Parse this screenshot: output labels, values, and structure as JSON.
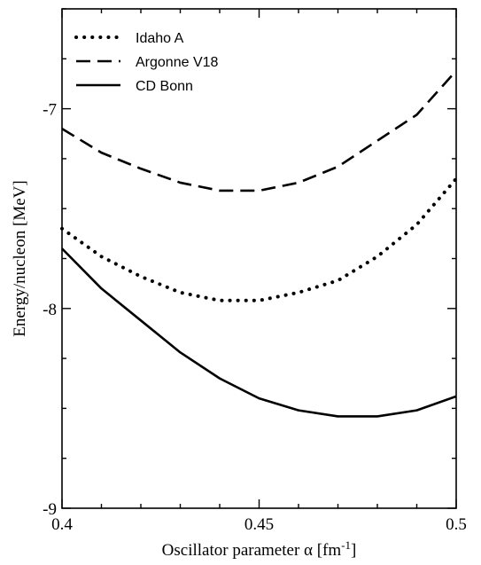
{
  "chart_data": {
    "type": "line",
    "xlabel": "Oscillator parameter α [fm⁻¹]",
    "xlabel_main": "Oscillator parameter α [fm",
    "xlabel_sup": "-1",
    "xlabel_close": "]",
    "ylabel": "Energy/nucleon [MeV]",
    "xlim": [
      0.4,
      0.5
    ],
    "ylim": [
      -9,
      -6.5
    ],
    "x_ticks": [
      {
        "value": 0.4,
        "label": "0.4"
      },
      {
        "value": 0.45,
        "label": "0.45"
      },
      {
        "value": 0.5,
        "label": "0.5"
      }
    ],
    "y_ticks": [
      {
        "value": -9,
        "label": "-9"
      },
      {
        "value": -8,
        "label": "-8"
      },
      {
        "value": -7,
        "label": "-7"
      }
    ],
    "legend_position": "top-left",
    "series": [
      {
        "name": "Idaho A",
        "style": "dotted",
        "x": [
          0.4,
          0.41,
          0.42,
          0.43,
          0.44,
          0.45,
          0.46,
          0.47,
          0.48,
          0.49,
          0.5
        ],
        "y": [
          -7.6,
          -7.74,
          -7.84,
          -7.92,
          -7.96,
          -7.96,
          -7.92,
          -7.86,
          -7.74,
          -7.58,
          -7.35
        ]
      },
      {
        "name": "Argonne V18",
        "style": "dashed",
        "x": [
          0.4,
          0.41,
          0.42,
          0.43,
          0.44,
          0.45,
          0.46,
          0.47,
          0.48,
          0.49,
          0.5
        ],
        "y": [
          -7.1,
          -7.22,
          -7.3,
          -7.37,
          -7.41,
          -7.41,
          -7.37,
          -7.29,
          -7.16,
          -7.03,
          -6.81
        ]
      },
      {
        "name": "CD Bonn",
        "style": "solid",
        "x": [
          0.4,
          0.41,
          0.42,
          0.43,
          0.44,
          0.45,
          0.46,
          0.47,
          0.48,
          0.49,
          0.5
        ],
        "y": [
          -7.7,
          -7.9,
          -8.06,
          -8.22,
          -8.35,
          -8.45,
          -8.51,
          -8.54,
          -8.54,
          -8.51,
          -8.44
        ]
      }
    ]
  }
}
